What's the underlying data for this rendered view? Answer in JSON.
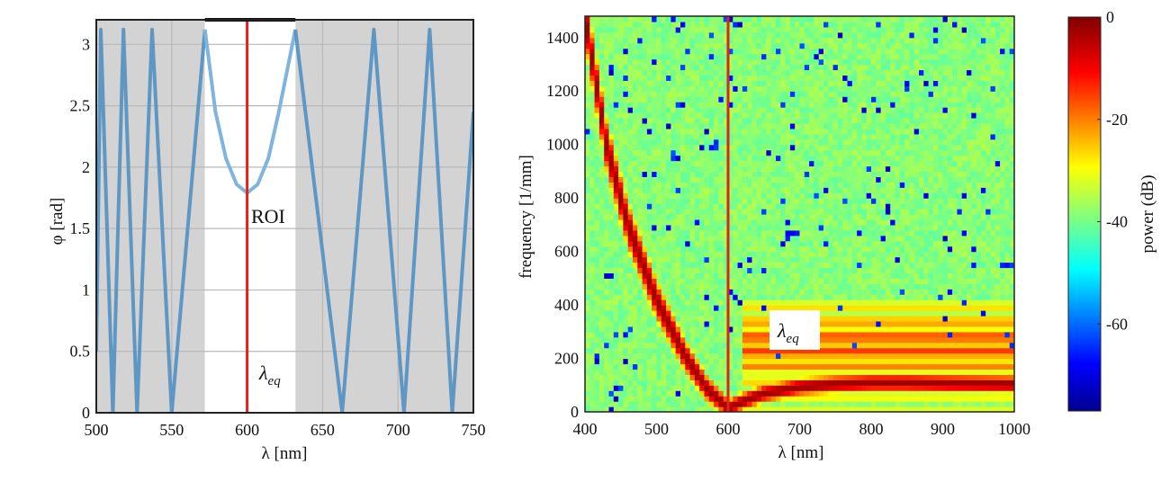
{
  "chart_data": [
    {
      "type": "line",
      "xlabel": "λ [nm]",
      "ylabel": "φ [rad]",
      "xlim": [
        500,
        750
      ],
      "ylim": [
        0,
        3.2
      ],
      "x_ticks": [
        "500",
        "550",
        "600",
        "650",
        "700",
        "750"
      ],
      "y_ticks": [
        "0",
        "0.5",
        "1",
        "1.5",
        "2",
        "2.5",
        "3"
      ],
      "grid": true,
      "annotations": {
        "roi": "ROI",
        "lambda_symbol": "λ",
        "lambda_subscript": "eq"
      },
      "shaded_regions": [
        [
          500,
          572
        ],
        [
          632,
          750
        ]
      ],
      "roi_region": [
        572,
        632
      ],
      "marker_line_x": 600,
      "series": [
        {
          "x": [
            500,
            503,
            511,
            518,
            527,
            537,
            550,
            572,
            579,
            586,
            593,
            600,
            607,
            614,
            621,
            632,
            663,
            684,
            704,
            721,
            736,
            750
          ],
          "y": [
            0.5,
            3.12,
            0,
            3.12,
            0,
            3.12,
            0,
            3.12,
            2.45,
            2.07,
            1.86,
            1.79,
            1.86,
            2.07,
            2.45,
            3.12,
            0,
            3.12,
            0,
            3.12,
            0,
            2.45
          ]
        }
      ],
      "colors": {
        "line": "#5f97c4",
        "roi_line": "#7fb4dc",
        "marker": "#e32219",
        "shade": "#d3d3d3"
      }
    },
    {
      "type": "heatmap",
      "xlabel": "λ [nm]",
      "ylabel": "frequency [1/mm]",
      "xlim": [
        400,
        1000
      ],
      "ylim": [
        0,
        1480
      ],
      "x_ticks": [
        "400",
        "500",
        "600",
        "700",
        "800",
        "900",
        "1000"
      ],
      "y_ticks": [
        "0",
        "200",
        "400",
        "600",
        "800",
        "1000",
        "1200",
        "1400"
      ],
      "annotations": {
        "lambda_symbol": "λ",
        "lambda_subscript": "eq"
      },
      "marker_line_x": 600,
      "ridge": {
        "x": [
          400,
          430,
          460,
          500,
          540,
          570,
          600,
          620,
          650,
          700,
          750,
          800,
          850,
          900,
          1000
        ],
        "y": [
          1480,
          1000,
          700,
          420,
          210,
          90,
          15,
          40,
          70,
          95,
          105,
          110,
          110,
          108,
          105
        ]
      },
      "colorbar": {
        "label": "power (dB)",
        "range": [
          -77,
          0
        ],
        "ticks": [
          "0",
          "-20",
          "-40",
          "-60"
        ],
        "colormap": "jet"
      },
      "colors": {
        "marker": "#e32219"
      }
    }
  ]
}
